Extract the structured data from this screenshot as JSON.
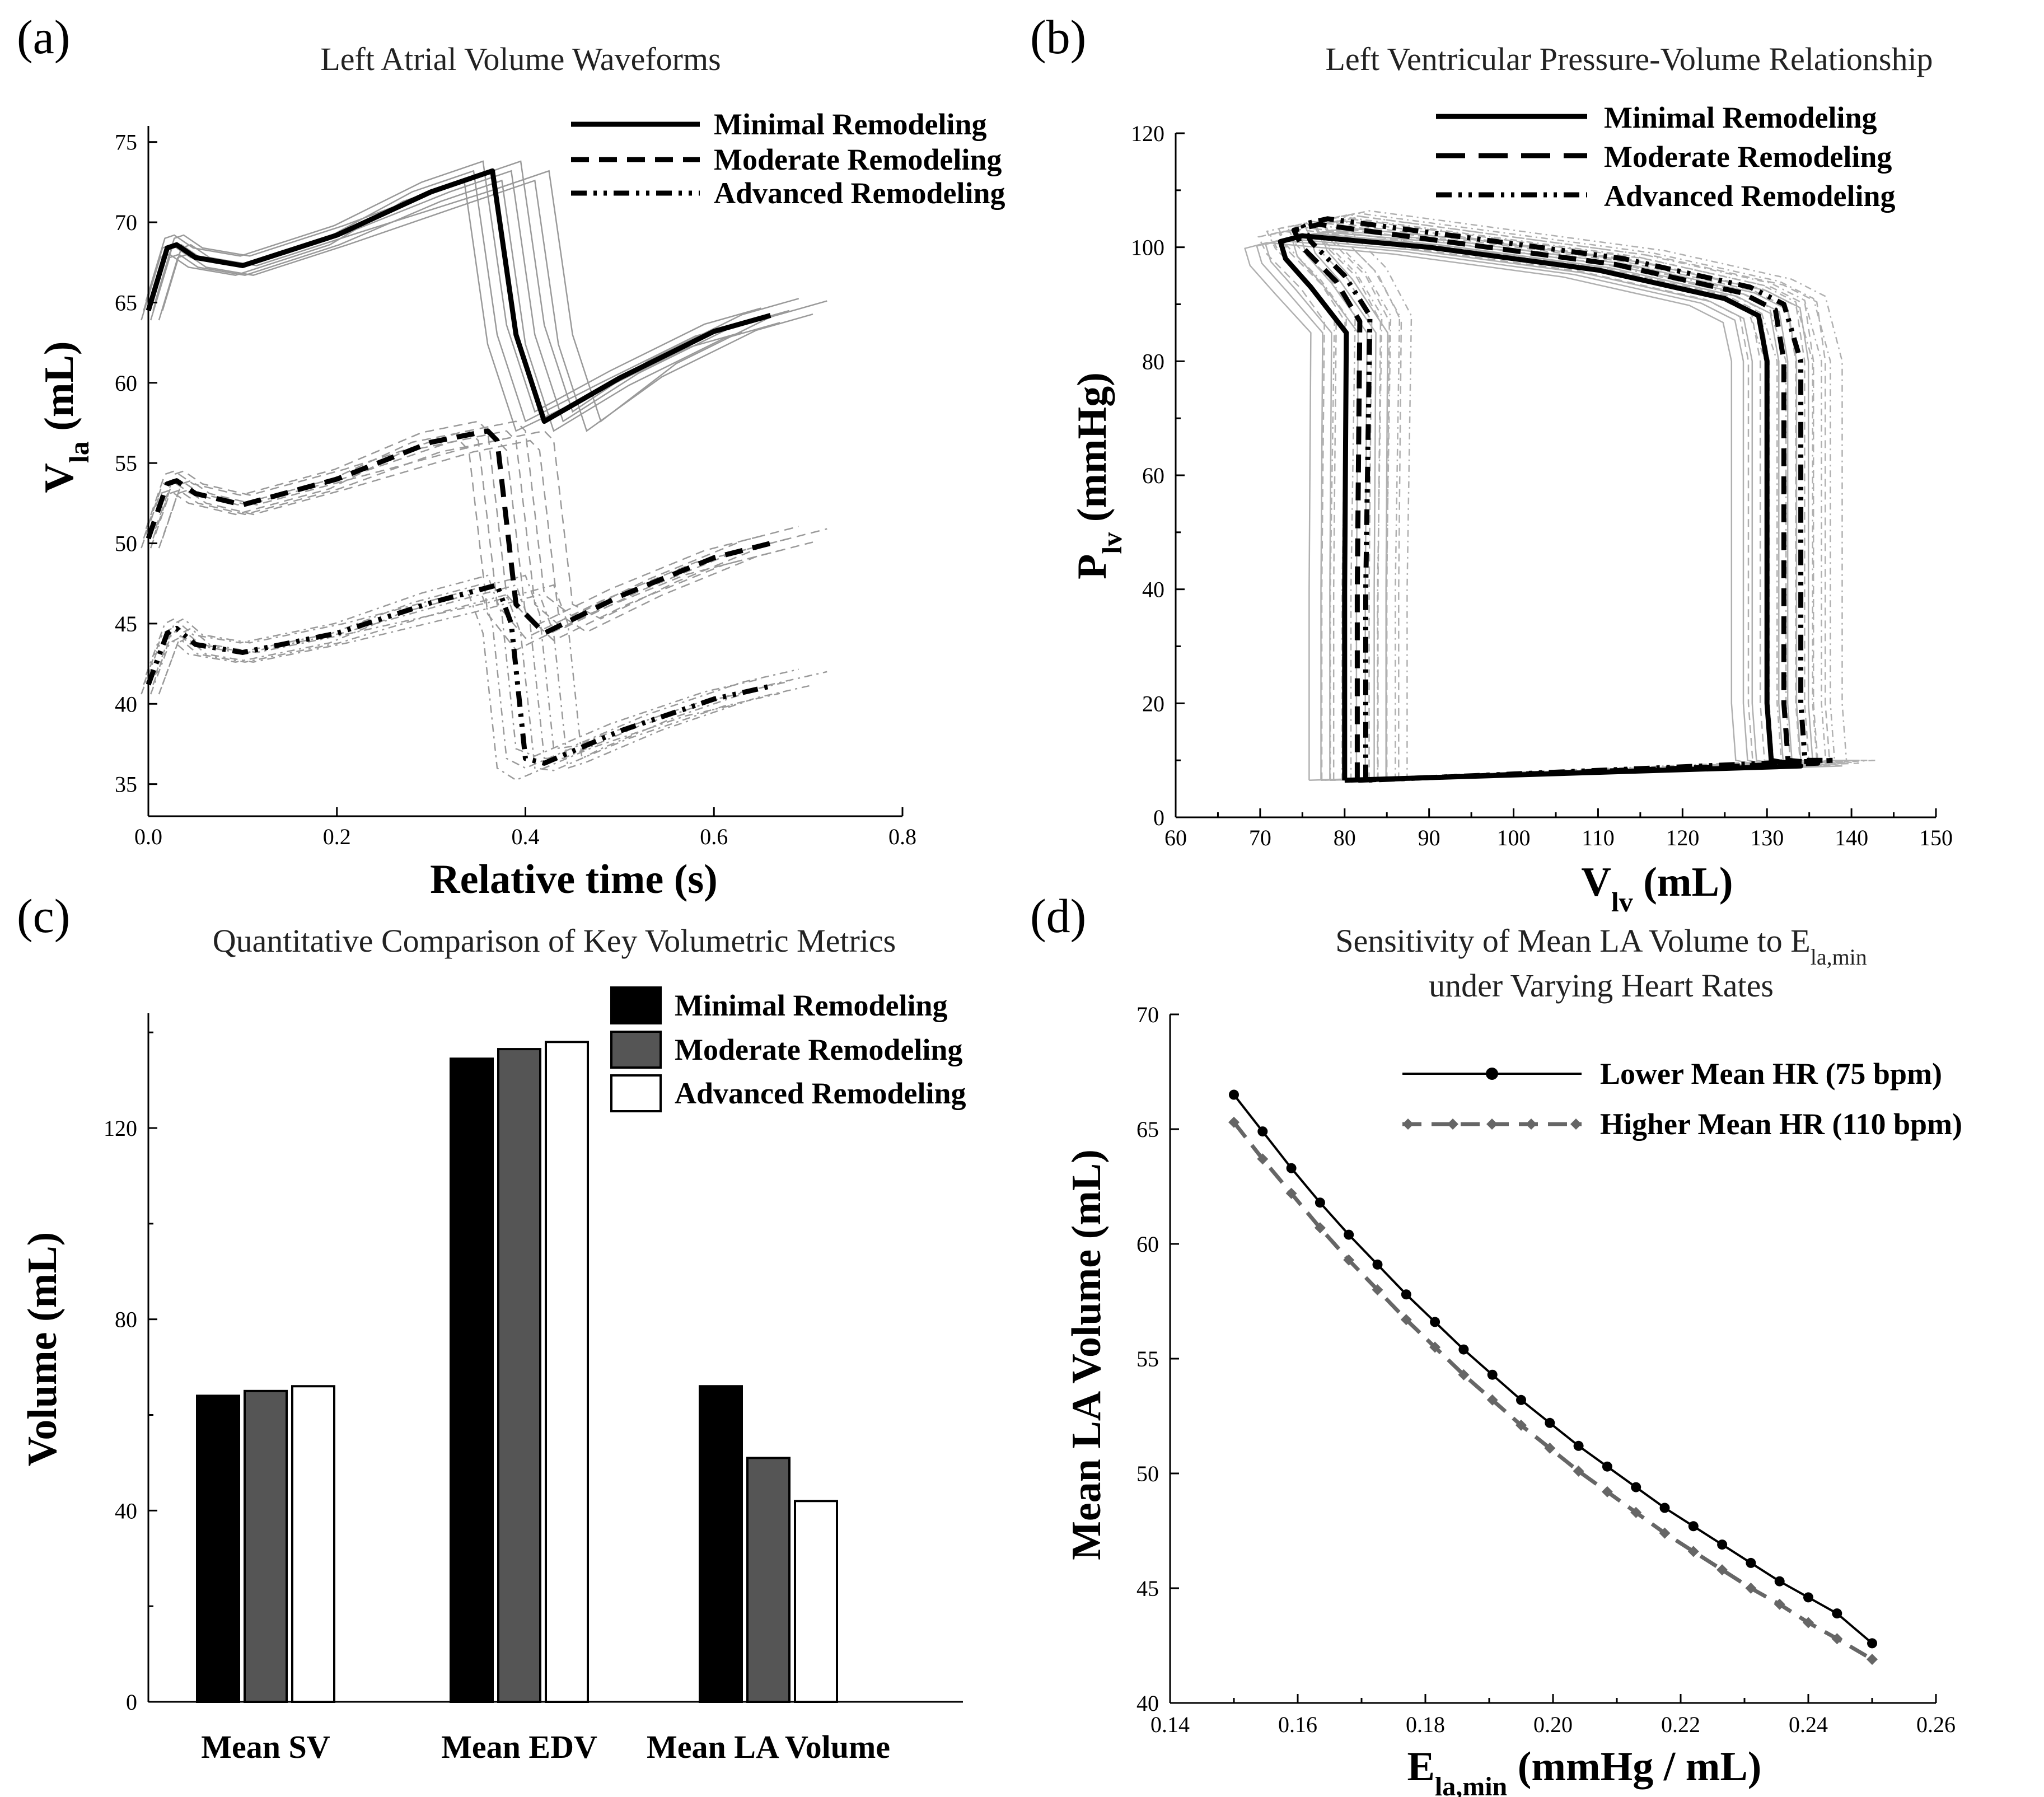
{
  "panels": {
    "a": {
      "letter": "(a)",
      "title": "Left Atrial Volume Waveforms",
      "xlabel": "Relative time (s)",
      "ylabel_main": "V",
      "ylabel_sub": "la",
      "ylabel_unit": " (mL)",
      "xticks": [
        "0.0",
        "0.2",
        "0.4",
        "0.6",
        "0.8"
      ],
      "yticks": [
        "35",
        "40",
        "45",
        "50",
        "55",
        "60",
        "65",
        "70",
        "75"
      ],
      "legend": [
        "Minimal Remodeling",
        "Moderate Remodeling",
        "Advanced Remodeling"
      ]
    },
    "b": {
      "letter": "(b)",
      "title": "Left Ventricular Pressure-Volume Relationship",
      "xlabel_main": "V",
      "xlabel_sub": "lv",
      "xlabel_unit": " (mL)",
      "ylabel_main": "P",
      "ylabel_sub": "lv",
      "ylabel_unit": " (mmHg)",
      "xticks": [
        "60",
        "70",
        "80",
        "90",
        "100",
        "110",
        "120",
        "130",
        "140",
        "150"
      ],
      "yticks": [
        "0",
        "20",
        "40",
        "60",
        "80",
        "100",
        "120"
      ],
      "legend": [
        "Minimal Remodeling",
        "Moderate Remodeling",
        "Advanced Remodeling"
      ]
    },
    "c": {
      "letter": "(c)",
      "title": "Quantitative Comparison of Key Volumetric Metrics",
      "ylabel": "Volume (mL)",
      "yticks": [
        "0",
        "40",
        "80",
        "120"
      ],
      "legend": [
        "Minimal Remodeling",
        "Moderate Remodeling",
        "Advanced Remodeling"
      ]
    },
    "d": {
      "letter": "(d)",
      "title_line1": "Sensitivity of Mean LA Volume to E",
      "title_sub": "la,min",
      "title_line2": "under Varying Heart Rates",
      "ylabel": "Mean LA Volume (mL)",
      "xlabel_main": "E",
      "xlabel_sub": "la,min",
      "xlabel_unit": " (mmHg / mL)",
      "xticks": [
        "0.14",
        "0.16",
        "0.18",
        "0.20",
        "0.22",
        "0.24",
        "0.26"
      ],
      "yticks": [
        "40",
        "45",
        "50",
        "55",
        "60",
        "65",
        "70"
      ],
      "legend": [
        "Lower Mean HR (75 bpm)",
        "Higher Mean HR (110 bpm)"
      ]
    }
  },
  "chart_data": [
    {
      "panel": "a",
      "type": "line",
      "title": "Left Atrial Volume Waveforms",
      "xlabel": "Relative time (s)",
      "ylabel": "Vla (mL)",
      "xlim": [
        0,
        0.8
      ],
      "ylim": [
        33,
        76
      ],
      "series": [
        {
          "name": "Minimal Remodeling",
          "style": "solid",
          "x": [
            0.0,
            0.02,
            0.03,
            0.05,
            0.1,
            0.2,
            0.3,
            0.365,
            0.39,
            0.42,
            0.5,
            0.6,
            0.66
          ],
          "y": [
            64.5,
            68.4,
            68.6,
            67.8,
            67.3,
            69.2,
            71.9,
            73.2,
            63.0,
            57.6,
            60.3,
            63.2,
            64.2
          ]
        },
        {
          "name": "Moderate Remodeling",
          "style": "dashed",
          "x": [
            0.0,
            0.02,
            0.03,
            0.05,
            0.1,
            0.2,
            0.3,
            0.36,
            0.37,
            0.39,
            0.42,
            0.5,
            0.6,
            0.66
          ],
          "y": [
            50.3,
            53.7,
            53.9,
            53.1,
            52.4,
            54.0,
            56.3,
            57.0,
            56.4,
            46.2,
            44.4,
            46.7,
            49.1,
            50.0
          ]
        },
        {
          "name": "Advanced Remodeling",
          "style": "dash-dot",
          "x": [
            0.0,
            0.02,
            0.03,
            0.05,
            0.1,
            0.2,
            0.3,
            0.37,
            0.385,
            0.4,
            0.42,
            0.5,
            0.6,
            0.66
          ],
          "y": [
            41.2,
            44.4,
            44.7,
            43.7,
            43.2,
            44.4,
            46.3,
            47.4,
            45.0,
            36.6,
            36.3,
            38.3,
            40.3,
            41.1
          ]
        }
      ]
    },
    {
      "panel": "b",
      "type": "line",
      "title": "Left Ventricular Pressure-Volume Relationship",
      "xlabel": "Vlv (mL)",
      "ylabel": "Plv (mmHg)",
      "xlim": [
        60,
        150
      ],
      "ylim": [
        0,
        120
      ],
      "series": [
        {
          "name": "Minimal Remodeling",
          "style": "solid",
          "x": [
            80,
            80,
            80.2,
            76,
            73,
            72.4,
            75,
            90,
            110,
            125,
            129,
            130,
            130,
            130.5,
            134,
            80
          ],
          "y": [
            6.5,
            40,
            85,
            93,
            98,
            101,
            102,
            100,
            96,
            91,
            88,
            80,
            20,
            10,
            9,
            6.5
          ]
        },
        {
          "name": "Moderate Remodeling",
          "style": "dashed",
          "x": [
            81.5,
            81.5,
            81.8,
            79,
            75,
            74,
            77,
            92,
            112,
            127,
            131,
            132,
            132,
            132.5,
            136,
            81.5
          ],
          "y": [
            6.5,
            40,
            87,
            94,
            100,
            103,
            104,
            101,
            97,
            92,
            89,
            80,
            20,
            10,
            9.5,
            6.5
          ]
        },
        {
          "name": "Advanced Remodeling",
          "style": "dash-dot",
          "x": [
            82.5,
            82.5,
            83,
            80,
            76,
            75,
            78,
            93,
            113,
            128,
            132,
            134,
            134,
            134.5,
            138,
            82.5
          ],
          "y": [
            6.5,
            40,
            88,
            95,
            101,
            104,
            105,
            102,
            98,
            93,
            90,
            80,
            20,
            10,
            10,
            6.5
          ]
        }
      ]
    },
    {
      "panel": "c",
      "type": "bar",
      "title": "Quantitative Comparison of Key Volumetric Metrics",
      "ylabel": "Volume (mL)",
      "ylim": [
        0,
        144
      ],
      "categories": [
        "Mean SV",
        "Mean EDV",
        "Mean LA Volume"
      ],
      "series": [
        {
          "name": "Minimal Remodeling",
          "color": "#000000",
          "values": [
            64,
            134.5,
            66
          ]
        },
        {
          "name": "Moderate Remodeling",
          "color": "#555555",
          "values": [
            65,
            136.5,
            51
          ]
        },
        {
          "name": "Advanced Remodeling",
          "color": "#ffffff",
          "values": [
            66,
            138,
            42
          ]
        }
      ]
    },
    {
      "panel": "d",
      "type": "line",
      "title": "Sensitivity of Mean LA Volume to Ela,min under Varying Heart Rates",
      "xlabel": "Ela,min (mmHg / mL)",
      "ylabel": "Mean LA Volume (mL)",
      "xlim": [
        0.14,
        0.26
      ],
      "ylim": [
        40,
        70
      ],
      "series": [
        {
          "name": "Lower Mean HR (75 bpm)",
          "style": "solid-dot",
          "color": "#000000",
          "x": [
            0.15,
            0.1545,
            0.159,
            0.1635,
            0.168,
            0.1725,
            0.177,
            0.1815,
            0.186,
            0.1905,
            0.195,
            0.1995,
            0.204,
            0.2085,
            0.213,
            0.2175,
            0.222,
            0.2265,
            0.231,
            0.2355,
            0.24,
            0.2445,
            0.25
          ],
          "y": [
            66.5,
            64.9,
            63.3,
            61.8,
            60.4,
            59.1,
            57.8,
            56.6,
            55.4,
            54.3,
            53.2,
            52.2,
            51.2,
            50.3,
            49.4,
            48.5,
            47.7,
            46.9,
            46.1,
            45.3,
            44.6,
            43.9,
            42.6
          ]
        },
        {
          "name": "Higher Mean HR (110 bpm)",
          "style": "dashed-diamond",
          "color": "#666666",
          "x": [
            0.15,
            0.1545,
            0.159,
            0.1635,
            0.168,
            0.1725,
            0.177,
            0.1815,
            0.186,
            0.1905,
            0.195,
            0.1995,
            0.204,
            0.2085,
            0.213,
            0.2175,
            0.222,
            0.2265,
            0.231,
            0.2355,
            0.24,
            0.2445,
            0.25
          ],
          "y": [
            65.3,
            63.7,
            62.2,
            60.7,
            59.3,
            58.0,
            56.7,
            55.5,
            54.3,
            53.2,
            52.1,
            51.1,
            50.1,
            49.2,
            48.3,
            47.4,
            46.6,
            45.8,
            45.0,
            44.3,
            43.5,
            42.8,
            41.9
          ]
        }
      ]
    }
  ]
}
